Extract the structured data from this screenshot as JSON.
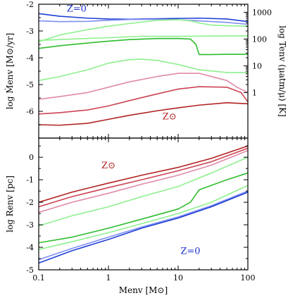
{
  "chart_data": [
    {
      "type": "line",
      "panel": "top",
      "xscale": "log",
      "xlim": [
        0.1,
        100
      ],
      "ylim": [
        -7.0,
        -2.0
      ],
      "yticks": [
        "-2",
        "-3",
        "-4",
        "-5",
        "-6"
      ],
      "ylabel": "log Ṁenv [M⊙/yr]",
      "right_ylabel": "log Tenv (μatm/μ) [K]",
      "right_yticks": [
        "1000",
        "100",
        "10",
        "1"
      ],
      "annotations": [
        {
          "text": "Z=0",
          "color": "#2233cc",
          "x": 0.35,
          "y": -2.28
        },
        {
          "text": "Z⊙",
          "color": "#b22222",
          "x": 7.5,
          "y": -6.3
        }
      ],
      "series": [
        {
          "color": "#1f3fd6",
          "x": [
            0.1,
            0.2,
            0.5,
            1,
            2,
            5,
            10,
            20,
            50,
            100
          ],
          "y": [
            -2.35,
            -2.45,
            -2.52,
            -2.55,
            -2.56,
            -2.54,
            -2.53,
            -2.52,
            -2.55,
            -2.65
          ]
        },
        {
          "color": "#7f8ff0",
          "x": [
            0.1,
            0.2,
            0.5,
            1,
            2,
            5,
            10,
            20,
            50,
            100
          ],
          "y": [
            -2.62,
            -2.65,
            -2.64,
            -2.6,
            -2.57,
            -2.56,
            -2.58,
            -2.62,
            -2.68,
            -2.75
          ]
        },
        {
          "color": "#8ef08e",
          "x": [
            0.1,
            0.2,
            0.5,
            1,
            2,
            5,
            10,
            15,
            20,
            30,
            50,
            100
          ],
          "y": [
            -3.4,
            -3.15,
            -2.95,
            -2.82,
            -2.72,
            -2.6,
            -2.58,
            -2.62,
            -2.7,
            -2.78,
            -2.8,
            -2.82
          ]
        },
        {
          "color": "#8ef08e",
          "x": [
            0.1,
            0.3,
            1,
            3,
            10,
            30,
            100
          ],
          "y": [
            -3.35,
            -3.3,
            -3.25,
            -3.2,
            -3.2,
            -3.19,
            -3.18
          ]
        },
        {
          "color": "#2dbd2d",
          "x": [
            0.1,
            0.2,
            0.5,
            1,
            2,
            5,
            10,
            15,
            18,
            20,
            30,
            50,
            100
          ],
          "y": [
            -3.65,
            -3.55,
            -3.45,
            -3.38,
            -3.32,
            -3.28,
            -3.28,
            -3.3,
            -3.5,
            -3.88,
            -3.88,
            -3.87,
            -3.87
          ]
        },
        {
          "color": "#8ef08e",
          "x": [
            0.1,
            0.2,
            0.5,
            1,
            2,
            3,
            5,
            10,
            20,
            50,
            100
          ],
          "y": [
            -4.85,
            -4.7,
            -4.45,
            -4.2,
            -4.07,
            -4.05,
            -4.1,
            -4.25,
            -4.45,
            -4.55,
            -4.55
          ]
        },
        {
          "color": "#e08aa8",
          "x": [
            0.1,
            0.2,
            0.5,
            1,
            2,
            5,
            10,
            20,
            50,
            70,
            100
          ],
          "y": [
            -5.55,
            -5.45,
            -5.3,
            -5.1,
            -4.9,
            -4.7,
            -4.58,
            -4.58,
            -4.85,
            -5.1,
            -5.3
          ]
        },
        {
          "color": "#cc4455",
          "x": [
            0.1,
            0.2,
            0.5,
            1,
            2,
            5,
            10,
            20,
            50,
            80,
            100
          ],
          "y": [
            -6.1,
            -6.05,
            -5.95,
            -5.8,
            -5.6,
            -5.35,
            -5.17,
            -5.08,
            -5.1,
            -5.3,
            -5.65
          ]
        },
        {
          "color": "#b22222",
          "x": [
            0.1,
            0.2,
            0.5,
            1,
            2,
            5,
            10,
            20,
            50,
            100
          ],
          "y": [
            -6.5,
            -6.52,
            -6.45,
            -6.3,
            -6.15,
            -5.98,
            -5.87,
            -5.77,
            -5.68,
            -5.72
          ]
        }
      ]
    },
    {
      "type": "line",
      "panel": "bottom",
      "xscale": "log",
      "xlim": [
        0.1,
        100
      ],
      "ylim": [
        -5.0,
        0.85
      ],
      "xticks": [
        "0.1",
        "1",
        "10",
        "100"
      ],
      "yticks": [
        "0",
        "-1",
        "-2",
        "-3",
        "-4",
        "-5"
      ],
      "xlabel": "Menv [M⊙]",
      "ylabel": "log Renv [pc]",
      "annotations": [
        {
          "text": "Z⊙",
          "color": "#b22222",
          "x": 1.0,
          "y": -0.5
        },
        {
          "text": "Z=0",
          "color": "#2233cc",
          "x": 15,
          "y": -4.3
        }
      ],
      "series": [
        {
          "color": "#b22222",
          "x": [
            0.1,
            0.3,
            1,
            3,
            10,
            30,
            100
          ],
          "y": [
            -2.0,
            -1.55,
            -1.15,
            -0.8,
            -0.45,
            -0.05,
            0.5
          ]
        },
        {
          "color": "#cc4455",
          "x": [
            0.1,
            0.3,
            1,
            3,
            10,
            30,
            100
          ],
          "y": [
            -2.2,
            -1.75,
            -1.35,
            -1.0,
            -0.6,
            -0.2,
            0.4
          ]
        },
        {
          "color": "#e08aa8",
          "x": [
            0.1,
            0.3,
            1,
            3,
            10,
            30,
            100
          ],
          "y": [
            -2.45,
            -2.0,
            -1.6,
            -1.2,
            -0.8,
            -0.35,
            0.3
          ]
        },
        {
          "color": "#8ef08e",
          "x": [
            0.1,
            0.3,
            1,
            3,
            10,
            30,
            100
          ],
          "y": [
            -3.05,
            -2.6,
            -2.2,
            -1.75,
            -1.3,
            -0.7,
            0.0
          ]
        },
        {
          "color": "#2dbd2d",
          "x": [
            0.1,
            0.3,
            1,
            3,
            10,
            15,
            20,
            30,
            50,
            100
          ],
          "y": [
            -3.8,
            -3.55,
            -3.15,
            -2.75,
            -2.3,
            -2.0,
            -1.45,
            -1.25,
            -1.0,
            -0.7
          ]
        },
        {
          "color": "#8ef08e",
          "x": [
            0.1,
            0.3,
            1,
            3,
            10,
            30,
            100
          ],
          "y": [
            -4.1,
            -3.75,
            -3.35,
            -2.95,
            -2.5,
            -2.0,
            -1.25
          ]
        },
        {
          "color": "#7f8ff0",
          "x": [
            0.1,
            0.3,
            1,
            3,
            10,
            30,
            100
          ],
          "y": [
            -4.55,
            -4.05,
            -3.55,
            -3.1,
            -2.65,
            -2.15,
            -1.5
          ]
        },
        {
          "color": "#1f3fd6",
          "x": [
            0.1,
            0.3,
            1,
            3,
            10,
            30,
            100
          ],
          "y": [
            -4.7,
            -4.15,
            -3.65,
            -3.15,
            -2.7,
            -2.2,
            -1.55
          ]
        }
      ]
    }
  ]
}
